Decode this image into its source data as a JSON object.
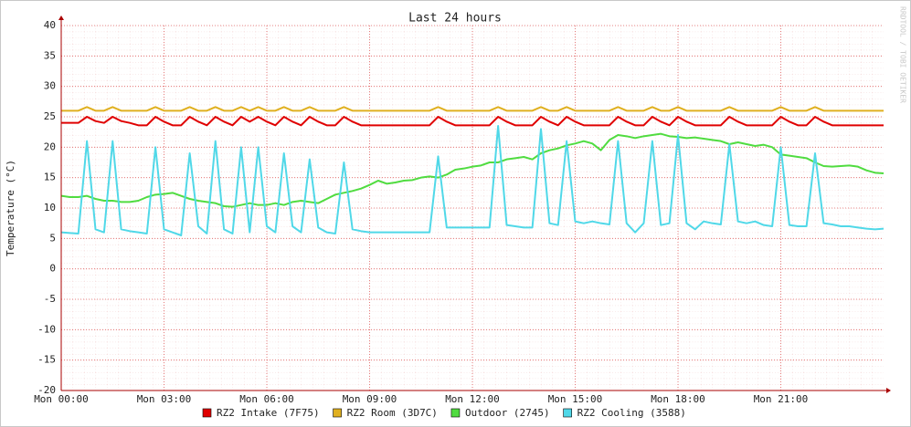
{
  "chart_data": {
    "type": "line",
    "title": "Last 24 hours",
    "ylabel": "Temperature (°C)",
    "side_text": "RRDTOOL / TOBI OETIKER",
    "xlim": [
      0,
      24
    ],
    "ylim": [
      -20,
      40
    ],
    "xticks": [
      {
        "value": 0,
        "label": "Mon 00:00"
      },
      {
        "value": 3,
        "label": "Mon 03:00"
      },
      {
        "value": 6,
        "label": "Mon 06:00"
      },
      {
        "value": 9,
        "label": "Mon 09:00"
      },
      {
        "value": 12,
        "label": "Mon 12:00"
      },
      {
        "value": 15,
        "label": "Mon 15:00"
      },
      {
        "value": 18,
        "label": "Mon 18:00"
      },
      {
        "value": 21,
        "label": "Mon 21:00"
      }
    ],
    "yticks": [
      -20,
      -15,
      -10,
      -5,
      0,
      5,
      10,
      15,
      20,
      25,
      30,
      35,
      40
    ],
    "grid": true,
    "x": [
      0,
      0.25,
      0.5,
      0.75,
      1,
      1.25,
      1.5,
      1.75,
      2,
      2.25,
      2.5,
      2.75,
      3,
      3.25,
      3.5,
      3.75,
      4,
      4.25,
      4.5,
      4.75,
      5,
      5.25,
      5.5,
      5.75,
      6,
      6.25,
      6.5,
      6.75,
      7,
      7.25,
      7.5,
      7.75,
      8,
      8.25,
      8.5,
      8.75,
      9,
      9.25,
      9.5,
      9.75,
      10,
      10.25,
      10.5,
      10.75,
      11,
      11.25,
      11.5,
      11.75,
      12,
      12.25,
      12.5,
      12.75,
      13,
      13.25,
      13.5,
      13.75,
      14,
      14.25,
      14.5,
      14.75,
      15,
      15.25,
      15.5,
      15.75,
      16,
      16.25,
      16.5,
      16.75,
      17,
      17.25,
      17.5,
      17.75,
      18,
      18.25,
      18.5,
      18.75,
      19,
      19.25,
      19.5,
      19.75,
      20,
      20.25,
      20.5,
      20.75,
      21,
      21.25,
      21.5,
      21.75,
      22,
      22.25,
      22.5,
      22.75,
      23,
      23.25,
      23.5,
      23.75,
      24
    ],
    "series": [
      {
        "name": "RZ2 Intake (7F75)",
        "color": "#e00000",
        "values": [
          24,
          24,
          24,
          25,
          24.3,
          24,
          25,
          24.3,
          24,
          23.6,
          23.6,
          25,
          24.2,
          23.6,
          23.6,
          25,
          24.2,
          23.6,
          25,
          24.2,
          23.6,
          25,
          24.2,
          25,
          24.2,
          23.6,
          25,
          24.2,
          23.6,
          25,
          24.2,
          23.6,
          23.6,
          25,
          24.2,
          23.6,
          23.6,
          23.6,
          23.6,
          23.6,
          23.6,
          23.6,
          23.6,
          23.6,
          25,
          24.2,
          23.6,
          23.6,
          23.6,
          23.6,
          23.6,
          25,
          24.2,
          23.6,
          23.6,
          23.6,
          25,
          24.2,
          23.6,
          25,
          24.2,
          23.6,
          23.6,
          23.6,
          23.6,
          25,
          24.2,
          23.6,
          23.6,
          25,
          24.2,
          23.6,
          25,
          24.2,
          23.6,
          23.6,
          23.6,
          23.6,
          25,
          24.2,
          23.6,
          23.6,
          23.6,
          23.6,
          25,
          24.2,
          23.6,
          23.6,
          25,
          24.2,
          23.6,
          23.6,
          23.6,
          23.6,
          23.6,
          23.6,
          23.6
        ]
      },
      {
        "name": "RZ2 Room (3D7C)",
        "color": "#e0b020",
        "values": [
          26,
          26,
          26,
          26.6,
          26,
          26,
          26.6,
          26,
          26,
          26,
          26,
          26.6,
          26,
          26,
          26,
          26.6,
          26,
          26,
          26.6,
          26,
          26,
          26.6,
          26,
          26.6,
          26,
          26,
          26.6,
          26,
          26,
          26.6,
          26,
          26,
          26,
          26.6,
          26,
          26,
          26,
          26,
          26,
          26,
          26,
          26,
          26,
          26,
          26.6,
          26,
          26,
          26,
          26,
          26,
          26,
          26.6,
          26,
          26,
          26,
          26,
          26.6,
          26,
          26,
          26.6,
          26,
          26,
          26,
          26,
          26,
          26.6,
          26,
          26,
          26,
          26.6,
          26,
          26,
          26.6,
          26,
          26,
          26,
          26,
          26,
          26.6,
          26,
          26,
          26,
          26,
          26,
          26.6,
          26,
          26,
          26,
          26.6,
          26,
          26,
          26,
          26,
          26,
          26,
          26,
          26
        ]
      },
      {
        "name": "Outdoor (2745)",
        "color": "#50dc40",
        "values": [
          12,
          11.8,
          11.8,
          12,
          11.5,
          11.2,
          11.2,
          11,
          11,
          11.2,
          11.8,
          12.2,
          12.3,
          12.5,
          12,
          11.5,
          11.2,
          11,
          10.8,
          10.3,
          10.2,
          10.5,
          10.8,
          10.5,
          10.5,
          10.8,
          10.5,
          11,
          11.2,
          11,
          10.8,
          11.5,
          12.2,
          12.5,
          12.8,
          13.2,
          13.8,
          14.5,
          14,
          14.2,
          14.5,
          14.6,
          15,
          15.2,
          15,
          15.5,
          16.3,
          16.5,
          16.8,
          17,
          17.5,
          17.5,
          18,
          18.2,
          18.4,
          18,
          19,
          19.5,
          19.8,
          20.3,
          20.6,
          21,
          20.6,
          19.5,
          21.2,
          22,
          21.8,
          21.5,
          21.8,
          22,
          22.2,
          21.8,
          21.7,
          21.5,
          21.6,
          21.4,
          21.2,
          21,
          20.5,
          20.8,
          20.5,
          20.2,
          20.4,
          20,
          18.8,
          18.6,
          18.4,
          18.2,
          17.5,
          16.9,
          16.8,
          16.9,
          17,
          16.8,
          16.2,
          15.8,
          15.7
        ]
      },
      {
        "name": "RZ2 Cooling (3588)",
        "color": "#50d8e8",
        "values": [
          6,
          5.9,
          5.8,
          21,
          6.5,
          6,
          21,
          6.5,
          6.2,
          6,
          5.8,
          20,
          6.5,
          6,
          5.5,
          19,
          7,
          5.8,
          21,
          6.5,
          5.8,
          20,
          6,
          20,
          7,
          6,
          19,
          7,
          6,
          18,
          6.8,
          6,
          5.8,
          17.5,
          6.5,
          6.2,
          6,
          6,
          6,
          6,
          6,
          6,
          6,
          6,
          18.5,
          6.8,
          6.8,
          6.8,
          6.8,
          6.8,
          6.8,
          23.5,
          7.2,
          7,
          6.8,
          6.8,
          23,
          7.5,
          7.2,
          21,
          7.8,
          7.5,
          7.8,
          7.5,
          7.3,
          21,
          7.5,
          6,
          7.5,
          21,
          7.2,
          7.5,
          22,
          7.5,
          6.5,
          7.8,
          7.5,
          7.3,
          20.5,
          7.8,
          7.5,
          7.8,
          7.2,
          7,
          20,
          7.2,
          7,
          7,
          19,
          7.5,
          7.3,
          7,
          7,
          6.8,
          6.6,
          6.5,
          6.6
        ]
      }
    ]
  }
}
